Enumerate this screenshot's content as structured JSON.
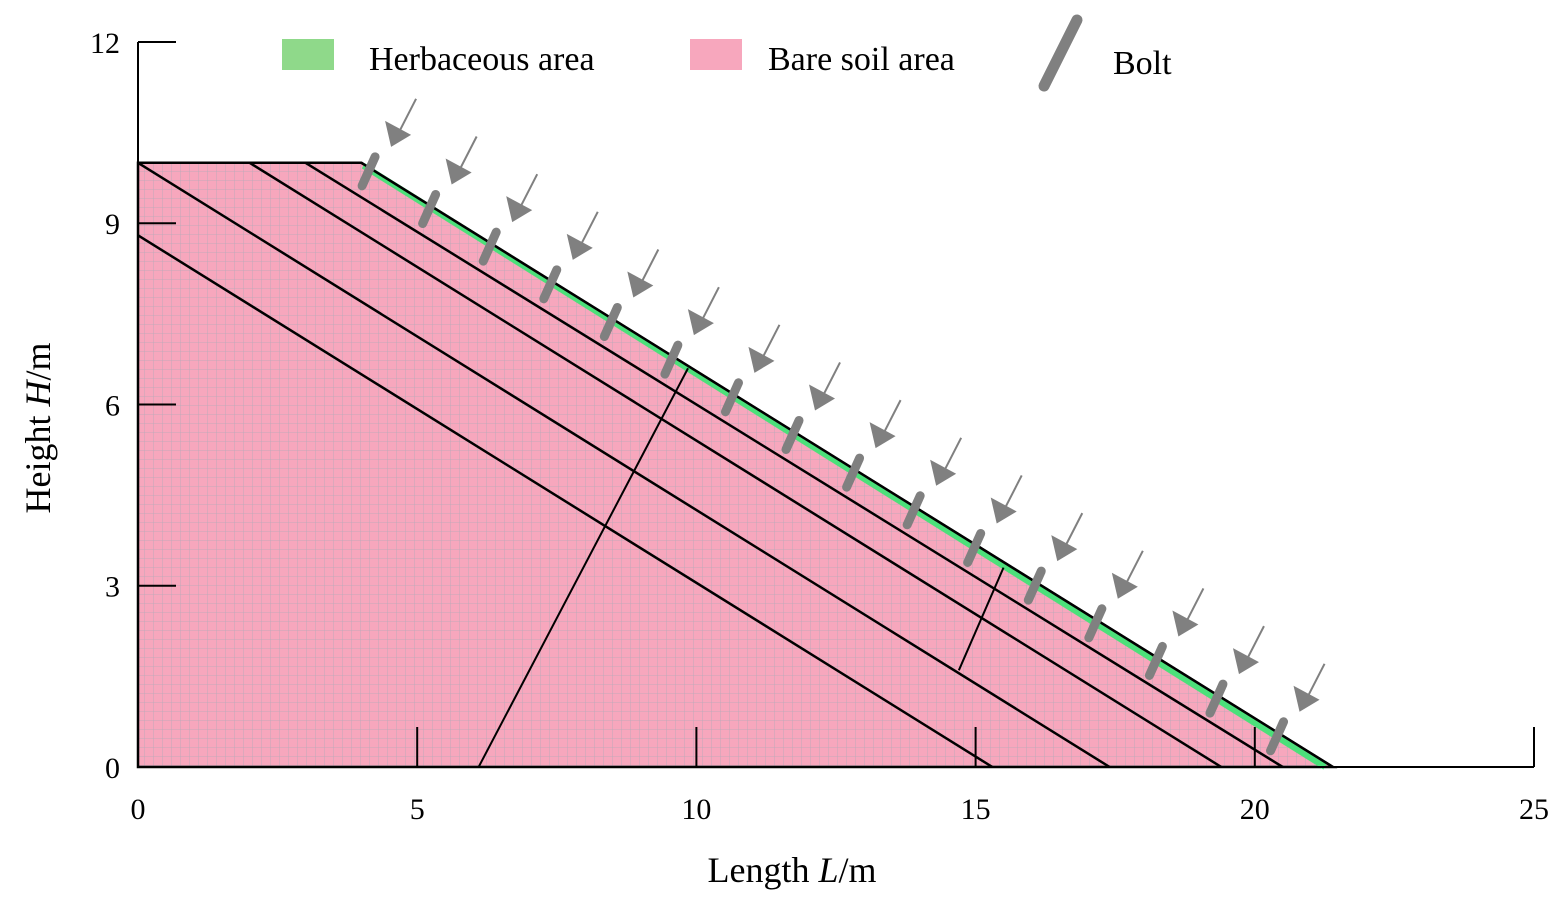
{
  "axes": {
    "x_title": {
      "prefix": "Length ",
      "var": "L",
      "suffix": "/m"
    },
    "y_title": {
      "prefix": "Height ",
      "var": "H",
      "suffix": "/m"
    },
    "x_range": [
      0,
      25
    ],
    "y_range": [
      0,
      12
    ],
    "x_ticks": [
      "0",
      "5",
      "10",
      "15",
      "20",
      "25"
    ],
    "y_ticks": [
      "0",
      "3",
      "6",
      "9",
      "12"
    ],
    "x_tick_values": [
      0,
      5,
      10,
      15,
      20,
      25
    ],
    "y_tick_values": [
      0,
      3,
      6,
      9,
      12
    ]
  },
  "legend": {
    "herbaceous": "Herbaceous area",
    "bare_soil": "Bare soil area",
    "bolt": "Bolt"
  },
  "colors": {
    "herbaceous": "#8fd98a",
    "bare_soil": "#f7a7bd",
    "mesh": "#b4aab8",
    "bolt": "#808080",
    "grass_line": "#4ce07a",
    "lines": "#000000"
  },
  "geometry_data_units": {
    "slope_top": [
      [
        0,
        10
      ],
      [
        4,
        10
      ]
    ],
    "slope_face": [
      [
        4,
        10
      ],
      [
        21.4,
        0
      ]
    ],
    "layer_lines": [
      [
        [
          3,
          10
        ],
        [
          20.5,
          0
        ]
      ],
      [
        [
          2,
          10
        ],
        [
          19.4,
          0
        ]
      ],
      [
        [
          0,
          10
        ],
        [
          17.4,
          0
        ]
      ],
      [
        [
          0,
          8.8
        ],
        [
          15.3,
          0
        ]
      ]
    ],
    "slip_lines": [
      [
        [
          6.1,
          0
        ],
        [
          9.85,
          6.6
        ]
      ],
      [
        [
          14.7,
          1.6
        ],
        [
          15.5,
          3.3
        ]
      ]
    ],
    "bolt_count": 16
  }
}
